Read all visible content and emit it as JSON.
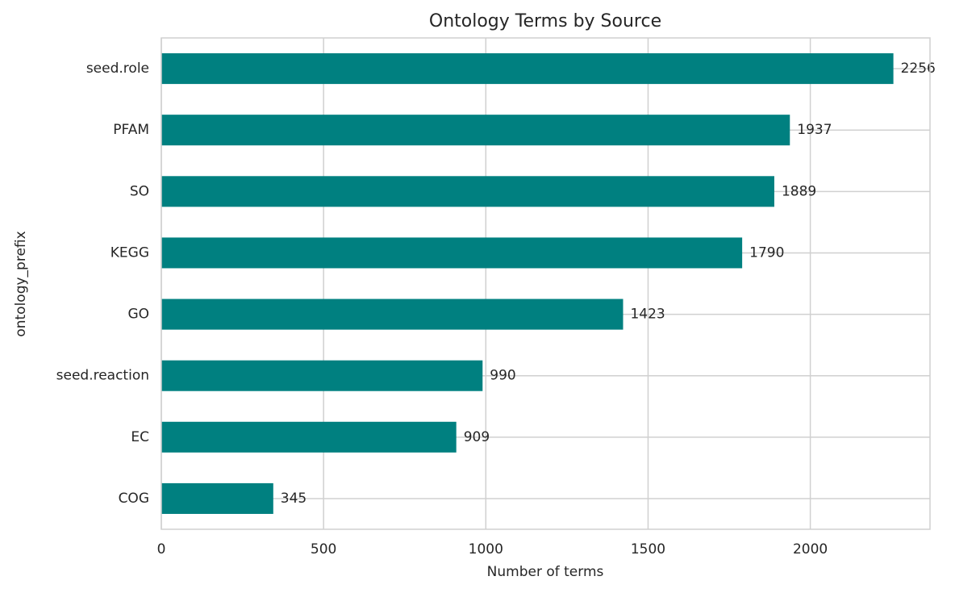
{
  "chart_data": {
    "type": "barh",
    "title": "Ontology Terms by Source",
    "x_label": "Number of terms",
    "y_label": "ontology_prefix",
    "categories": [
      "seed.role",
      "PFAM",
      "SO",
      "KEGG",
      "GO",
      "seed.reaction",
      "EC",
      "COG"
    ],
    "values": [
      2256,
      1937,
      1889,
      1790,
      1423,
      990,
      909,
      345
    ],
    "color": "#008080",
    "xlim": [
      0,
      2368.8
    ],
    "xticks": [
      0,
      500,
      1000,
      1500,
      2000
    ],
    "grid": true
  }
}
